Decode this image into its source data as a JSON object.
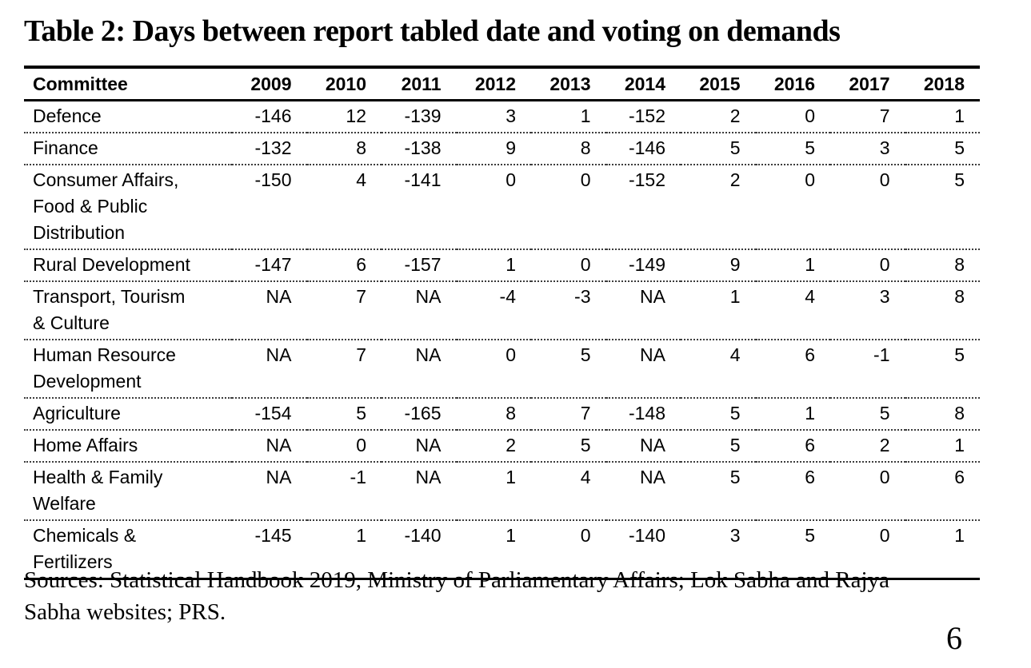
{
  "document": {
    "sources": "Sources: Statistical Handbook 2019, Ministry of Parliamentary Affairs; Lok Sabha and Rajya\nSabha websites; PRS.",
    "page_number": "6"
  },
  "chart_data": {
    "type": "table",
    "title": "Table 2: Days between report tabled date and voting on demands",
    "columns": [
      "Committee",
      "2009",
      "2010",
      "2011",
      "2012",
      "2013",
      "2014",
      "2015",
      "2016",
      "2017",
      "2018"
    ],
    "rows": [
      {
        "committee": "Defence",
        "values": [
          "-146",
          "12",
          "-139",
          "3",
          "1",
          "-152",
          "2",
          "0",
          "7",
          "1"
        ]
      },
      {
        "committee": "Finance",
        "values": [
          "-132",
          "8",
          "-138",
          "9",
          "8",
          "-146",
          "5",
          "5",
          "3",
          "5"
        ]
      },
      {
        "committee": "Consumer Affairs,\nFood & Public\nDistribution",
        "values": [
          "-150",
          "4",
          "-141",
          "0",
          "0",
          "-152",
          "2",
          "0",
          "0",
          "5"
        ]
      },
      {
        "committee": "Rural Development",
        "values": [
          "-147",
          "6",
          "-157",
          "1",
          "0",
          "-149",
          "9",
          "1",
          "0",
          "8"
        ]
      },
      {
        "committee": "Transport, Tourism\n& Culture",
        "values": [
          "NA",
          "7",
          "NA",
          "-4",
          "-3",
          "NA",
          "1",
          "4",
          "3",
          "8"
        ]
      },
      {
        "committee": "Human Resource\nDevelopment",
        "values": [
          "NA",
          "7",
          "NA",
          "0",
          "5",
          "NA",
          "4",
          "6",
          "-1",
          "5"
        ]
      },
      {
        "committee": "Agriculture",
        "values": [
          "-154",
          "5",
          "-165",
          "8",
          "7",
          "-148",
          "5",
          "1",
          "5",
          "8"
        ]
      },
      {
        "committee": "Home Affairs",
        "values": [
          "NA",
          "0",
          "NA",
          "2",
          "5",
          "NA",
          "5",
          "6",
          "2",
          "1"
        ]
      },
      {
        "committee": "Health & Family\nWelfare",
        "values": [
          "NA",
          "-1",
          "NA",
          "1",
          "4",
          "NA",
          "5",
          "6",
          "0",
          "6"
        ]
      },
      {
        "committee": "Chemicals &\nFertilizers",
        "values": [
          "-145",
          "1",
          "-140",
          "1",
          "0",
          "-140",
          "3",
          "5",
          "0",
          "1"
        ]
      }
    ]
  }
}
